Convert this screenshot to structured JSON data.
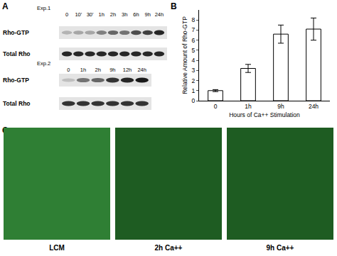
{
  "panel_labels": [
    "A",
    "B",
    "C"
  ],
  "panel_a": {
    "blots": [
      {
        "experiment": "Exp.1",
        "lanes": [
          "0",
          "10'",
          "30'",
          "1h",
          "2h",
          "3h",
          "6h",
          "9h",
          "24h"
        ],
        "rows": [
          {
            "label": "Rho-GTP",
            "intensity": [
              0.3,
              0.35,
              0.35,
              0.5,
              0.6,
              0.55,
              0.7,
              0.75,
              0.85
            ]
          },
          {
            "label": "Total Rho",
            "intensity": [
              0.85,
              0.85,
              0.85,
              0.85,
              0.85,
              0.85,
              0.85,
              0.85,
              0.85
            ]
          }
        ]
      },
      {
        "experiment": "Exp.2",
        "lanes": [
          "0",
          "1h",
          "2h",
          "9h",
          "12h",
          "24h"
        ],
        "rows": [
          {
            "label": "Rho-GTP",
            "intensity": [
              0.25,
              0.55,
              0.6,
              0.8,
              0.85,
              0.9
            ]
          },
          {
            "label": "Total Rho",
            "intensity": [
              0.8,
              0.8,
              0.8,
              0.8,
              0.8,
              0.8
            ]
          }
        ]
      }
    ]
  },
  "chart_data": {
    "type": "bar",
    "x_label": "Hours of Ca++ Stimulation",
    "y_label": "Relative Amount of Rho-GTP",
    "categories": [
      "0",
      "1h",
      "9h",
      "24h"
    ],
    "values": [
      1.0,
      3.2,
      6.6,
      7.1
    ],
    "errors": [
      0.1,
      0.4,
      0.9,
      1.1
    ],
    "color": "#ffffff",
    "ylim": [
      0,
      9
    ],
    "yticks": [
      0,
      1,
      2,
      3,
      4,
      5,
      6,
      7,
      8
    ],
    "grid": false
  },
  "panel_c": {
    "images": [
      {
        "label": "LCM"
      },
      {
        "label": "2h Ca++"
      },
      {
        "label": "9h Ca++"
      }
    ]
  }
}
